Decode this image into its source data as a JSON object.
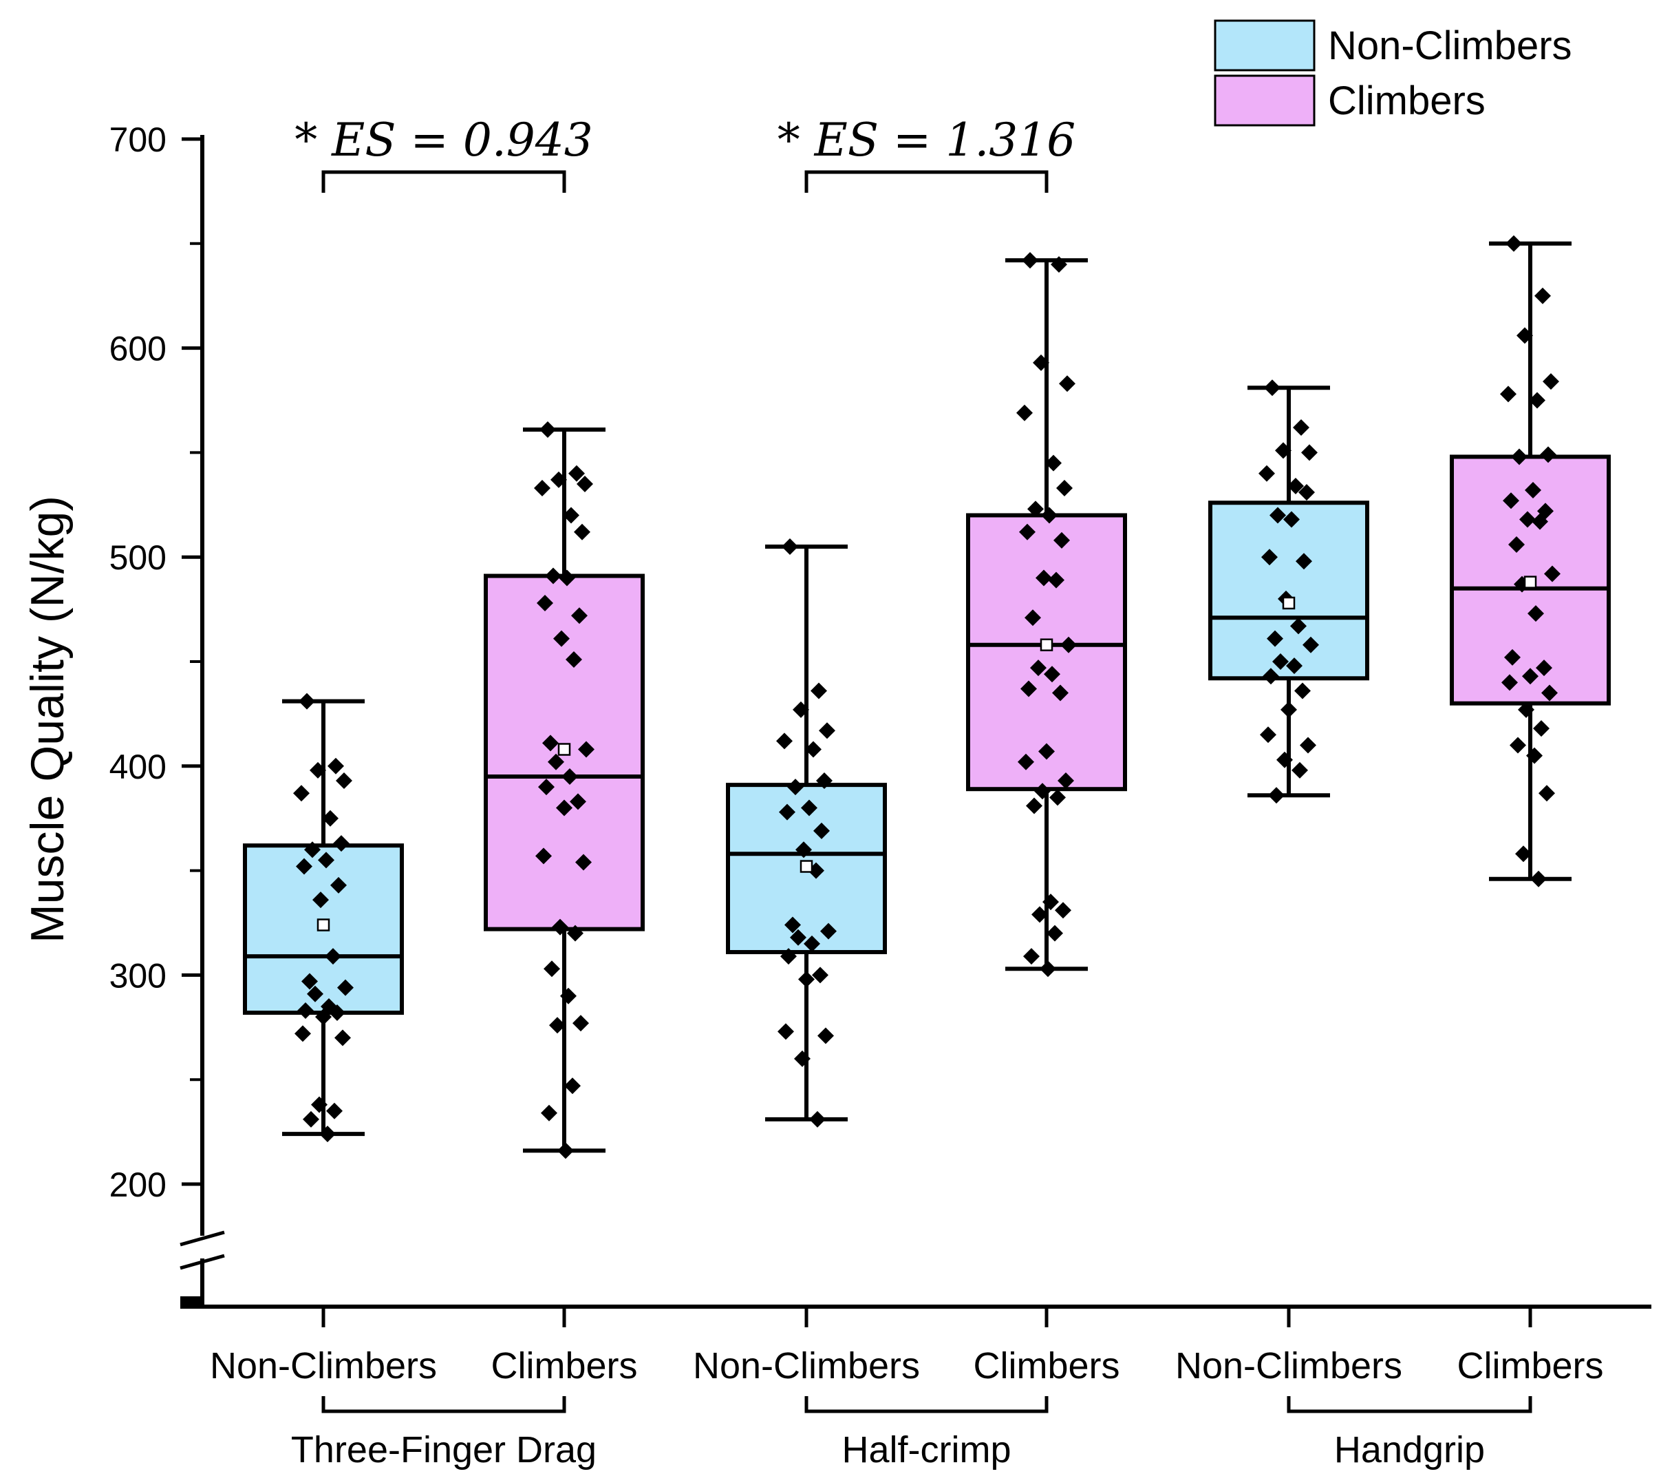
{
  "chart_data": {
    "type": "box",
    "ylabel": "Muscle Quality (N/kg)",
    "ylim": [
      150,
      700
    ],
    "y_ticks": [
      200,
      300,
      400,
      500,
      600,
      700
    ],
    "y_ticks_labels": [
      "200",
      "300",
      "400",
      "500",
      "600",
      "700"
    ],
    "axis_break": true,
    "legend": [
      {
        "name": "Non-Climbers",
        "color": "#b3e6fa"
      },
      {
        "name": "Climbers",
        "color": "#eeb0f8"
      }
    ],
    "legend_position": "top-right",
    "colors": {
      "non_climbers": "#b3e6fa",
      "climbers": "#eeb0f8",
      "stroke": "#000000"
    },
    "groups": [
      {
        "label": "Three-Finger Drag",
        "significance": "* ES = 0.943",
        "boxes": [
          {
            "category": "Non-Climbers",
            "series": "non_climbers",
            "whisker_low": 224,
            "q1": 282,
            "median": 309,
            "q3": 362,
            "whisker_high": 431,
            "mean": 324,
            "points": [
              431,
              400,
              398,
              393,
              387,
              375,
              363,
              360,
              355,
              352,
              343,
              336,
              309,
              297,
              294,
              291,
              285,
              283,
              282,
              280,
              272,
              270,
              238,
              235,
              231,
              224
            ]
          },
          {
            "category": "Climbers",
            "series": "climbers",
            "whisker_low": 216,
            "q1": 322,
            "median": 395,
            "q3": 491,
            "whisker_high": 561,
            "mean": 408,
            "points": [
              561,
              540,
              537,
              535,
              533,
              520,
              512,
              491,
              490,
              478,
              472,
              461,
              451,
              411,
              408,
              402,
              395,
              390,
              383,
              380,
              357,
              354,
              323,
              320,
              303,
              290,
              277,
              276,
              247,
              234,
              216
            ]
          }
        ]
      },
      {
        "label": "Half-crimp",
        "significance": "* ES = 1.316",
        "boxes": [
          {
            "category": "Non-Climbers",
            "series": "non_climbers",
            "whisker_low": 231,
            "q1": 311,
            "median": 358,
            "q3": 391,
            "whisker_high": 505,
            "mean": 352,
            "points": [
              505,
              436,
              427,
              417,
              412,
              408,
              393,
              390,
              380,
              378,
              369,
              360,
              350,
              324,
              321,
              318,
              315,
              309,
              300,
              298,
              273,
              271,
              260,
              231
            ]
          },
          {
            "category": "Climbers",
            "series": "climbers",
            "whisker_low": 303,
            "q1": 389,
            "median": 458,
            "q3": 520,
            "whisker_high": 642,
            "mean": 458,
            "points": [
              642,
              640,
              593,
              583,
              569,
              545,
              533,
              523,
              520,
              512,
              508,
              490,
              489,
              471,
              458,
              447,
              444,
              437,
              435,
              407,
              402,
              393,
              388,
              385,
              381,
              335,
              331,
              329,
              320,
              309,
              303
            ]
          }
        ]
      },
      {
        "label": "Handgrip",
        "significance": "",
        "boxes": [
          {
            "category": "Non-Climbers",
            "series": "non_climbers",
            "whisker_low": 386,
            "q1": 442,
            "median": 471,
            "q3": 526,
            "whisker_high": 581,
            "mean": 478,
            "points": [
              581,
              562,
              551,
              550,
              540,
              534,
              531,
              520,
              518,
              500,
              498,
              480,
              467,
              461,
              458,
              450,
              448,
              443,
              436,
              427,
              415,
              410,
              403,
              398,
              386
            ]
          },
          {
            "category": "Climbers",
            "series": "climbers",
            "whisker_low": 346,
            "q1": 430,
            "median": 485,
            "q3": 548,
            "whisker_high": 650,
            "mean": 488,
            "points": [
              650,
              625,
              606,
              584,
              578,
              575,
              549,
              548,
              532,
              527,
              522,
              518,
              517,
              506,
              492,
              487,
              473,
              452,
              447,
              443,
              440,
              435,
              427,
              418,
              410,
              405,
              387,
              358,
              346
            ]
          }
        ]
      }
    ]
  }
}
